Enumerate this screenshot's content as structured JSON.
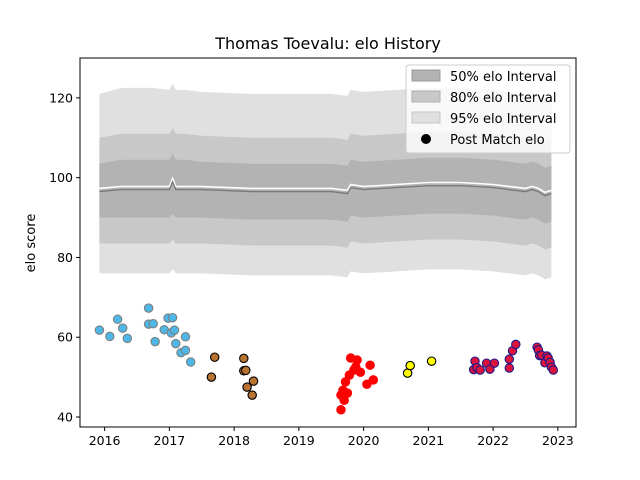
{
  "chart_data": {
    "type": "scatter",
    "title": "Thomas Toevalu: elo History",
    "xlabel": "",
    "ylabel": "elo score",
    "xlim": [
      2015.62,
      2023.28
    ],
    "ylim": [
      37.5,
      130
    ],
    "xticks": [
      2016,
      2017,
      2018,
      2019,
      2020,
      2021,
      2022,
      2023
    ],
    "xtick_labels": [
      "2016",
      "2017",
      "2018",
      "2019",
      "2020",
      "2021",
      "2022",
      "2023"
    ],
    "yticks": [
      40,
      60,
      80,
      100,
      120
    ],
    "ytick_labels": [
      "40",
      "60",
      "80",
      "100",
      "120"
    ],
    "grid": false,
    "legend_position": "top-right",
    "legend": [
      {
        "label": "50% elo Interval",
        "color": "#b3b3b3",
        "kind": "patch"
      },
      {
        "label": "80% elo Interval",
        "color": "#c8c8c8",
        "kind": "patch"
      },
      {
        "label": "95% elo Interval",
        "color": "#e0e0e0",
        "kind": "patch"
      },
      {
        "label": "Post Match elo",
        "color": "#000000",
        "kind": "marker"
      }
    ],
    "bands": {
      "x": [
        2015.92,
        2016.25,
        2016.75,
        2017.0,
        2017.05,
        2017.1,
        2017.25,
        2017.5,
        2018.25,
        2019.5,
        2019.75,
        2019.8,
        2020.0,
        2020.5,
        2021.0,
        2021.5,
        2022.0,
        2022.5,
        2022.6,
        2022.7,
        2022.8,
        2022.9
      ],
      "mean": [
        96.5,
        97.0,
        97.0,
        97.0,
        99.0,
        97.0,
        97.0,
        97.0,
        96.5,
        96.5,
        96.0,
        97.5,
        97.0,
        97.5,
        98.0,
        98.0,
        97.5,
        96.5,
        97.0,
        96.5,
        95.5,
        96.0
      ],
      "p50": [
        [
          90.0,
          103.5
        ],
        [
          90.0,
          104.5
        ],
        [
          90.0,
          104.5
        ],
        [
          90.0,
          104.5
        ],
        [
          91.0,
          106.0
        ],
        [
          90.0,
          104.5
        ],
        [
          90.0,
          104.5
        ],
        [
          90.0,
          104.0
        ],
        [
          89.5,
          103.5
        ],
        [
          89.5,
          103.5
        ],
        [
          89.0,
          103.0
        ],
        [
          90.5,
          104.5
        ],
        [
          90.0,
          104.0
        ],
        [
          90.5,
          104.5
        ],
        [
          91.0,
          105.0
        ],
        [
          91.0,
          105.0
        ],
        [
          90.5,
          104.5
        ],
        [
          89.5,
          103.5
        ],
        [
          90.0,
          104.0
        ],
        [
          89.5,
          103.5
        ],
        [
          88.5,
          102.5
        ],
        [
          89.0,
          103.0
        ]
      ],
      "p80": [
        [
          83.5,
          110.0
        ],
        [
          83.5,
          111.0
        ],
        [
          83.5,
          111.0
        ],
        [
          83.5,
          111.0
        ],
        [
          84.5,
          112.5
        ],
        [
          83.5,
          111.0
        ],
        [
          83.5,
          111.0
        ],
        [
          83.5,
          110.5
        ],
        [
          83.0,
          110.0
        ],
        [
          83.0,
          110.0
        ],
        [
          82.5,
          109.5
        ],
        [
          84.0,
          111.0
        ],
        [
          83.5,
          110.5
        ],
        [
          84.0,
          111.0
        ],
        [
          84.5,
          111.5
        ],
        [
          84.5,
          111.5
        ],
        [
          84.0,
          111.0
        ],
        [
          83.0,
          110.0
        ],
        [
          83.5,
          110.5
        ],
        [
          83.0,
          110.0
        ],
        [
          82.0,
          109.0
        ],
        [
          82.5,
          109.5
        ]
      ],
      "p95": [
        [
          76.0,
          121.0
        ],
        [
          76.0,
          122.5
        ],
        [
          76.0,
          122.5
        ],
        [
          76.0,
          122.0
        ],
        [
          77.0,
          123.5
        ],
        [
          76.0,
          122.0
        ],
        [
          76.0,
          122.0
        ],
        [
          76.0,
          121.5
        ],
        [
          75.5,
          121.0
        ],
        [
          75.5,
          121.0
        ],
        [
          75.0,
          120.5
        ],
        [
          76.5,
          122.0
        ],
        [
          76.0,
          121.5
        ],
        [
          76.5,
          122.0
        ],
        [
          77.0,
          122.5
        ],
        [
          77.0,
          122.5
        ],
        [
          76.5,
          122.0
        ],
        [
          75.5,
          121.0
        ],
        [
          76.0,
          121.5
        ],
        [
          75.5,
          121.0
        ],
        [
          74.5,
          120.0
        ],
        [
          75.0,
          120.5
        ]
      ]
    },
    "series": [
      {
        "face": "#4db8e8",
        "edge": "#7f7f7f",
        "points": [
          [
            2015.92,
            61.8
          ],
          [
            2016.08,
            60.2
          ],
          [
            2016.2,
            64.5
          ],
          [
            2016.28,
            62.3
          ],
          [
            2016.35,
            59.7
          ],
          [
            2016.68,
            67.3
          ],
          [
            2016.68,
            63.3
          ],
          [
            2016.75,
            63.4
          ],
          [
            2016.78,
            58.9
          ],
          [
            2016.92,
            61.9
          ],
          [
            2016.98,
            64.8
          ],
          [
            2017.03,
            61.1
          ],
          [
            2017.05,
            64.9
          ],
          [
            2017.08,
            61.8
          ],
          [
            2017.1,
            58.4
          ],
          [
            2017.18,
            56.1
          ],
          [
            2017.25,
            60.1
          ],
          [
            2017.25,
            56.7
          ],
          [
            2017.33,
            53.8
          ]
        ]
      },
      {
        "face": "#b87333",
        "edge": "#000000",
        "points": [
          [
            2017.65,
            50.0
          ],
          [
            2017.7,
            55.0
          ],
          [
            2018.15,
            54.7
          ],
          [
            2018.15,
            51.6
          ],
          [
            2018.18,
            51.7
          ],
          [
            2018.2,
            47.5
          ],
          [
            2018.28,
            45.5
          ],
          [
            2018.3,
            49.0
          ]
        ]
      },
      {
        "face": "#ff0000",
        "edge": "#ff0000",
        "points": [
          [
            2019.65,
            41.8
          ],
          [
            2019.65,
            45.5
          ],
          [
            2019.68,
            46.7
          ],
          [
            2019.7,
            44.2
          ],
          [
            2019.72,
            48.8
          ],
          [
            2019.75,
            46.0
          ],
          [
            2019.78,
            50.5
          ],
          [
            2019.8,
            54.8
          ],
          [
            2019.85,
            51.8
          ],
          [
            2019.88,
            52.6
          ],
          [
            2019.9,
            54.3
          ],
          [
            2019.95,
            51.2
          ],
          [
            2020.05,
            48.2
          ],
          [
            2020.1,
            53.0
          ],
          [
            2020.15,
            49.3
          ]
        ]
      },
      {
        "face": "#ffff00",
        "edge": "#000000",
        "points": [
          [
            2020.68,
            51.0
          ],
          [
            2020.72,
            52.9
          ],
          [
            2021.05,
            54.0
          ]
        ]
      },
      {
        "face": "#dc143c",
        "edge": "#1a1a8c",
        "points": [
          [
            2021.7,
            51.9
          ],
          [
            2021.72,
            54.0
          ],
          [
            2021.75,
            52.4
          ],
          [
            2021.8,
            51.8
          ],
          [
            2021.9,
            53.5
          ],
          [
            2021.95,
            52.0
          ],
          [
            2022.02,
            53.5
          ],
          [
            2022.25,
            52.3
          ],
          [
            2022.25,
            54.5
          ],
          [
            2022.3,
            56.6
          ],
          [
            2022.35,
            58.2
          ],
          [
            2022.68,
            57.5
          ],
          [
            2022.7,
            56.8
          ],
          [
            2022.72,
            55.4
          ],
          [
            2022.75,
            55.5
          ],
          [
            2022.8,
            53.6
          ],
          [
            2022.83,
            55.3
          ],
          [
            2022.85,
            54.8
          ],
          [
            2022.88,
            53.7
          ],
          [
            2022.9,
            52.5
          ],
          [
            2022.93,
            51.8
          ]
        ]
      }
    ]
  }
}
